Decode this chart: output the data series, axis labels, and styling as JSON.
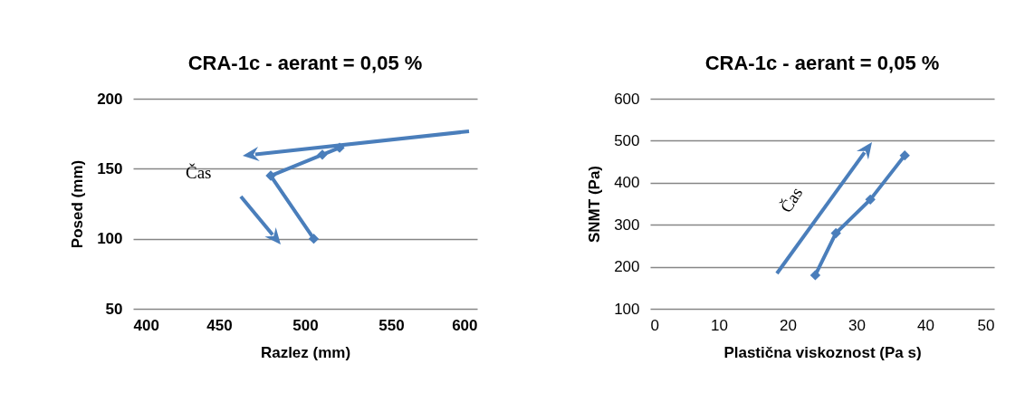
{
  "chart_data": [
    {
      "type": "line",
      "title": "CRA-1c - aerant = 0,05 %",
      "xlabel": "Razlez (mm)",
      "ylabel": "Posed (mm)",
      "x": [
        520,
        510,
        480,
        505
      ],
      "series": [
        {
          "color": "#4a7ebb",
          "values": [
            165,
            160,
            145,
            100
          ]
        }
      ],
      "xlim": [
        400,
        600
      ],
      "xticks": [
        400,
        450,
        500,
        550,
        600
      ],
      "ylim": [
        50,
        200
      ],
      "yticks": [
        50,
        100,
        150,
        200
      ],
      "grid": "y",
      "marker": "diamond",
      "annotations": [
        "Čas"
      ]
    },
    {
      "type": "line",
      "title": "CRA-1c - aerant = 0,05 %",
      "xlabel": "Plastična viskoznost (Pa s)",
      "ylabel": "SNMT (Pa)",
      "x": [
        24,
        27,
        32,
        37
      ],
      "series": [
        {
          "color": "#4a7ebb",
          "values": [
            180,
            280,
            360,
            465
          ]
        }
      ],
      "xlim": [
        0,
        50
      ],
      "xticks": [
        0,
        10,
        20,
        30,
        40,
        50
      ],
      "ylim": [
        100,
        600
      ],
      "yticks": [
        100,
        200,
        300,
        400,
        500,
        600
      ],
      "grid": "y",
      "marker": "diamond",
      "annotations": [
        "Čas"
      ]
    }
  ]
}
